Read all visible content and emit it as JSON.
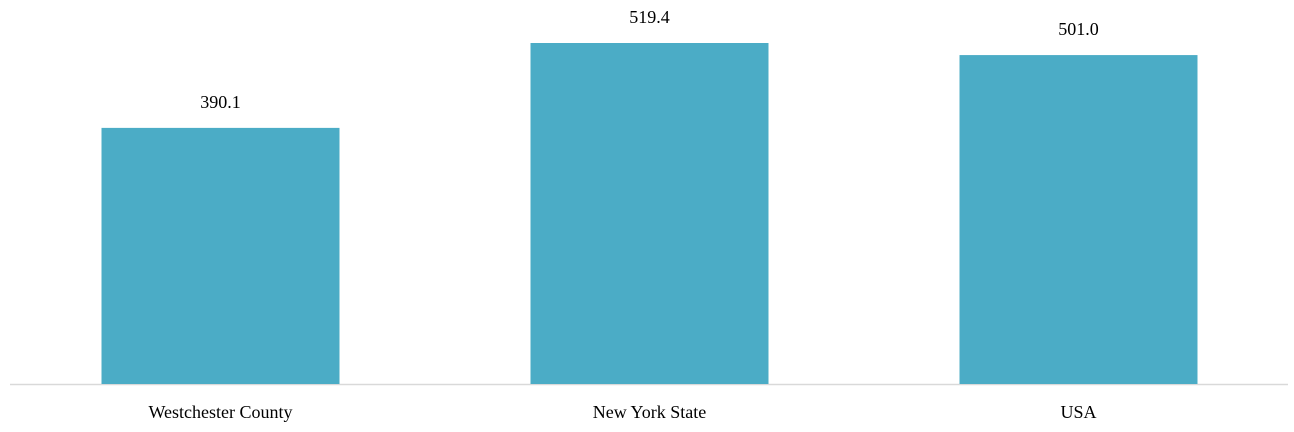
{
  "chart_data": {
    "type": "bar",
    "categories": [
      "Westchester County",
      "New York State",
      "USA"
    ],
    "values": [
      390.1,
      519.4,
      501.0
    ],
    "value_labels": [
      "390.1",
      "519.4",
      "501.0"
    ],
    "color": "#4bacc6"
  }
}
